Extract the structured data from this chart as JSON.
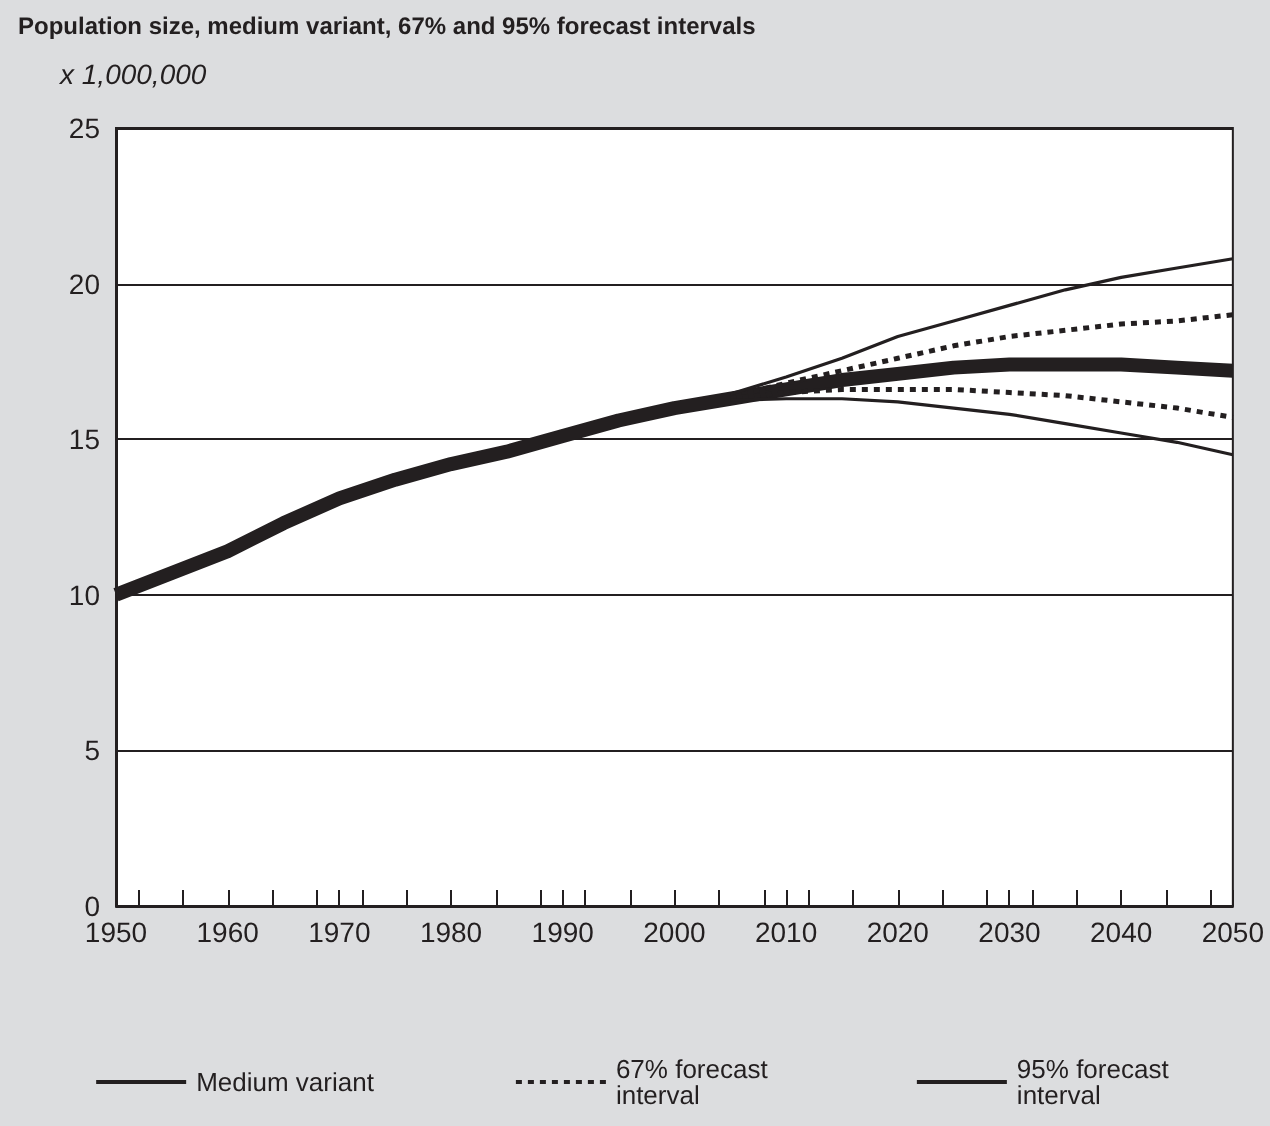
{
  "chart_data": {
    "type": "line",
    "title": "Population size, medium variant, 67% and 95% forecast intervals",
    "ylabel": "x 1,000,000",
    "xlim": [
      1950,
      2050
    ],
    "xticks": [
      1950,
      1960,
      1970,
      1980,
      1990,
      2000,
      2010,
      2020,
      2030,
      2040,
      2050
    ],
    "ylim": [
      0,
      25
    ],
    "yticks": [
      0,
      5,
      10,
      15,
      20,
      25
    ],
    "grid": "y",
    "legend": "bottom",
    "marker": "none",
    "series": [
      {
        "name": "Medium variant",
        "color": "#231f20",
        "line_style": "solid",
        "x": [
          1950,
          1955,
          1960,
          1965,
          1970,
          1975,
          1980,
          1985,
          1990,
          1995,
          2000,
          2005,
          2010,
          2015,
          2020,
          2025,
          2030,
          2035,
          2040,
          2045,
          2050
        ],
        "values": [
          10.0,
          10.7,
          11.4,
          12.3,
          13.1,
          13.7,
          14.2,
          14.6,
          15.1,
          15.6,
          16.0,
          16.3,
          16.6,
          16.9,
          17.1,
          17.3,
          17.4,
          17.4,
          17.4,
          17.3,
          17.2
        ]
      },
      {
        "name": "67% forecast interval",
        "color": "#231f20",
        "line_style": "dotted",
        "x": [
          2005,
          2010,
          2015,
          2020,
          2025,
          2030,
          2035,
          2040,
          2045,
          2050
        ],
        "values": [
          16.35,
          16.8,
          17.2,
          17.6,
          18.0,
          18.3,
          18.5,
          18.7,
          18.8,
          19.0
        ]
      },
      {
        "color": "#231f20",
        "line_style": "dotted",
        "x": [
          2005,
          2010,
          2015,
          2020,
          2025,
          2030,
          2035,
          2040,
          2045,
          2050
        ],
        "values": [
          16.3,
          16.5,
          16.6,
          16.6,
          16.6,
          16.5,
          16.4,
          16.2,
          16.0,
          15.7
        ]
      },
      {
        "name": "95% forecast interval",
        "color": "#231f20",
        "line_style": "solid",
        "x": [
          2005,
          2010,
          2015,
          2020,
          2025,
          2030,
          2035,
          2040,
          2045,
          2050
        ],
        "values": [
          16.45,
          17.0,
          17.6,
          18.3,
          18.8,
          19.3,
          19.8,
          20.2,
          20.5,
          20.8
        ]
      },
      {
        "color": "#231f20",
        "line_style": "solid",
        "x": [
          2005,
          2010,
          2015,
          2020,
          2025,
          2030,
          2035,
          2040,
          2045,
          2050
        ],
        "values": [
          16.25,
          16.3,
          16.3,
          16.2,
          16.0,
          15.8,
          15.5,
          15.2,
          14.9,
          14.5
        ]
      }
    ]
  }
}
